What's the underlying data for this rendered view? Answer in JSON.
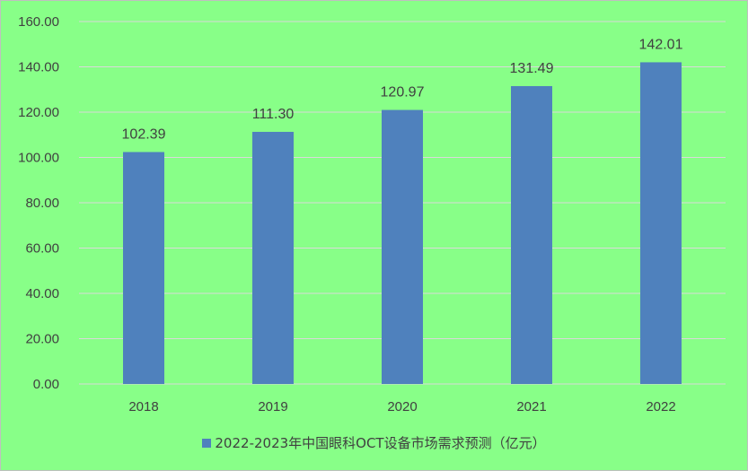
{
  "chart_data": {
    "type": "bar",
    "title": "",
    "xlabel": "",
    "ylabel": "",
    "categories": [
      "2018",
      "2019",
      "2020",
      "2021",
      "2022"
    ],
    "series": [
      {
        "name": "2022-2023年中国眼科OCT设备市场需求预测（亿元）",
        "values": [
          102.39,
          111.3,
          120.97,
          131.49,
          142.01
        ],
        "value_labels": [
          "102.39",
          "111.30",
          "120.97",
          "131.49",
          "142.01"
        ],
        "color": "#4f81bd"
      }
    ],
    "ylim": [
      0,
      160
    ],
    "yticks": [
      "0.00",
      "20.00",
      "40.00",
      "60.00",
      "80.00",
      "100.00",
      "120.00",
      "140.00",
      "160.00"
    ],
    "grid": true,
    "legend": "bottom",
    "colors": {
      "background": "#88ff88",
      "gridline": "#d9d9d9",
      "text": "#404040"
    }
  }
}
